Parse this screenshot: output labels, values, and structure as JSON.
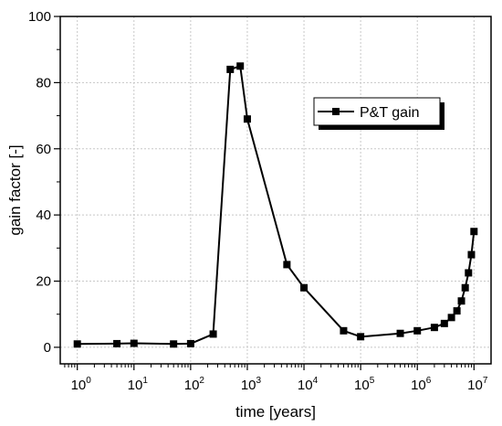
{
  "chart_data": {
    "type": "line",
    "xscale": "log",
    "x_tick_base": "10",
    "x_tick_exponents": [
      "0",
      "1",
      "2",
      "3",
      "4",
      "5",
      "6",
      "7"
    ],
    "y_ticks": [
      "0",
      "20",
      "40",
      "60",
      "80",
      "100"
    ],
    "xlabel": "time [years]",
    "ylabel": "gain factor [-]",
    "xlim": [
      0.5,
      20000000
    ],
    "ylim": [
      -5,
      100
    ],
    "grid": true,
    "legend_position": "top-right",
    "series": [
      {
        "name": "P&T gain",
        "color": "#000000",
        "marker": "square",
        "x": [
          1,
          5,
          10,
          50,
          100,
          250,
          500,
          750,
          1000,
          5000,
          10000,
          50000,
          100000,
          500000,
          1000000,
          2000000,
          3000000,
          4000000,
          5000000,
          6000000,
          7000000,
          8000000,
          9000000,
          10000000
        ],
        "y": [
          1,
          1.1,
          1.2,
          1,
          1.1,
          4,
          84,
          85,
          69,
          25,
          18,
          5,
          3.2,
          4.2,
          5,
          6,
          7.2,
          9,
          11,
          14,
          18,
          22.5,
          28,
          35
        ]
      }
    ]
  }
}
